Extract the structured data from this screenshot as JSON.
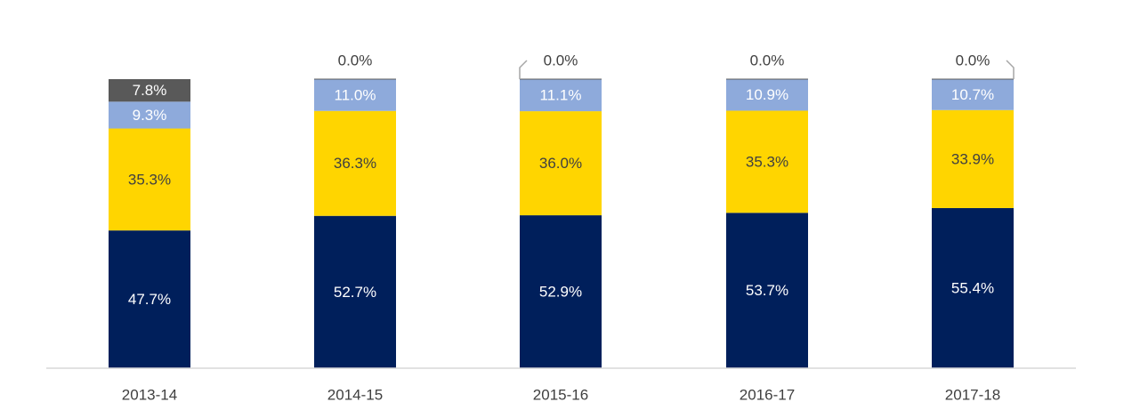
{
  "chart_data": {
    "type": "bar",
    "stacked": true,
    "normalized": true,
    "categories": [
      "2013-14",
      "2014-15",
      "2015-16",
      "2016-17",
      "2017-18"
    ],
    "series": [
      {
        "color": "#001F5B",
        "label_color": "#FFFFFF",
        "values": [
          47.7,
          52.7,
          52.9,
          53.7,
          55.4
        ],
        "labels": [
          "47.7%",
          "52.7%",
          "52.9%",
          "53.7%",
          "55.4%"
        ]
      },
      {
        "color": "#FFD500",
        "label_color": "#404040",
        "values": [
          35.3,
          36.3,
          36.0,
          35.3,
          33.9
        ],
        "labels": [
          "35.3%",
          "36.3%",
          "36.0%",
          "35.3%",
          "33.9%"
        ]
      },
      {
        "color": "#8EAADB",
        "label_color": "#FFFFFF",
        "values": [
          9.3,
          11.0,
          11.1,
          10.9,
          10.7
        ],
        "labels": [
          "9.3%",
          "11.0%",
          "11.1%",
          "10.9%",
          "10.7%"
        ]
      },
      {
        "color": "#595959",
        "label_color": "#FFFFFF",
        "values": [
          7.8,
          0.0,
          0.0,
          0.0,
          0.0
        ],
        "labels": [
          "7.8%",
          "0.0%",
          "0.0%",
          "0.0%",
          "0.0%"
        ]
      }
    ],
    "ylim": [
      0,
      100
    ],
    "grid": false,
    "legend": "none",
    "title": "",
    "xlabel": "",
    "ylabel": ""
  }
}
